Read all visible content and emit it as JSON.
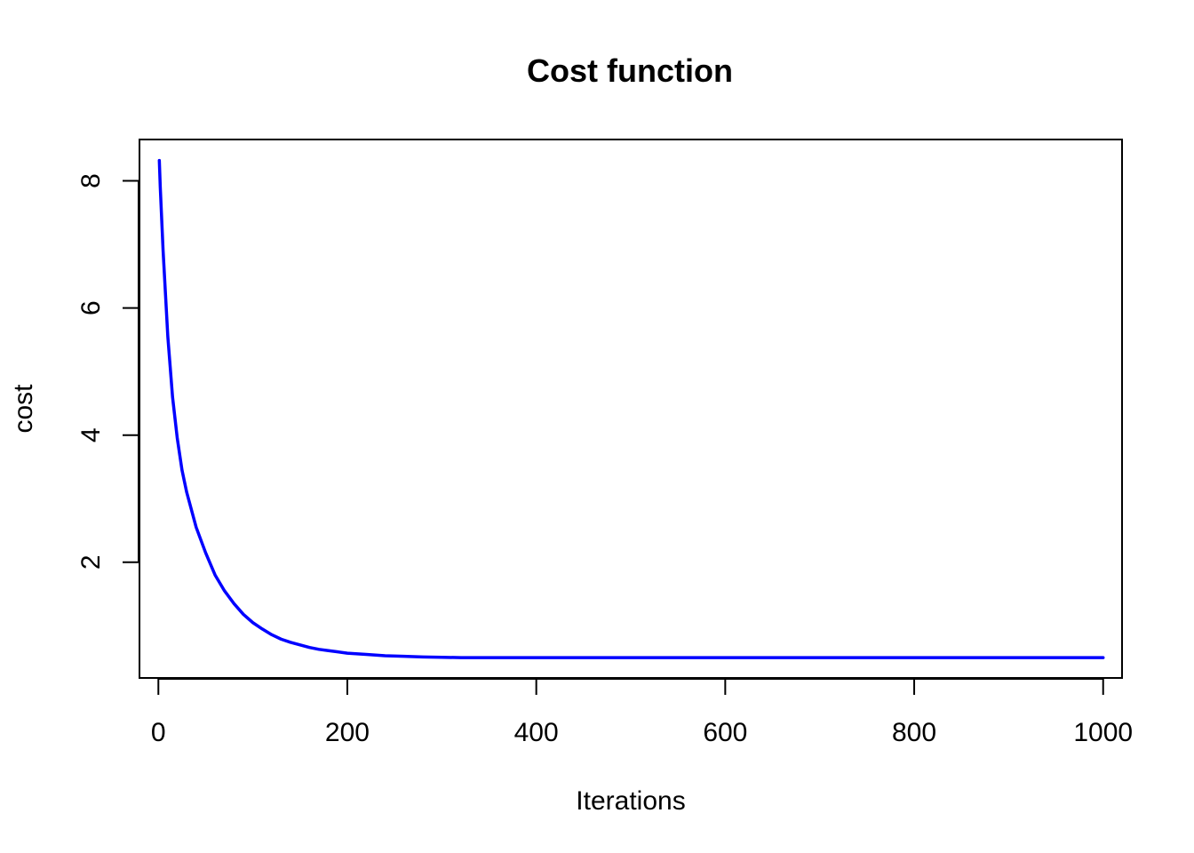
{
  "chart_data": {
    "type": "line",
    "title": "Cost function",
    "xlabel": "Iterations",
    "ylabel": "cost",
    "xlim": [
      -20,
      1020
    ],
    "ylim": [
      0.18,
      8.65
    ],
    "x_ticks": [
      0,
      200,
      400,
      600,
      800,
      1000
    ],
    "y_ticks": [
      2,
      4,
      6,
      8
    ],
    "grid": false,
    "line_color": "#0000ff",
    "series": [
      {
        "x": [
          1,
          2,
          5,
          10,
          15,
          20,
          25,
          30,
          40,
          50,
          60,
          70,
          80,
          90,
          100,
          110,
          120,
          130,
          140,
          150,
          160,
          170,
          180,
          190,
          200,
          220,
          240,
          260,
          280,
          300,
          320,
          350,
          400,
          500,
          600,
          700,
          800,
          900,
          1000
        ],
        "y": [
          8.32,
          7.9,
          6.9,
          5.55,
          4.6,
          3.95,
          3.45,
          3.1,
          2.55,
          2.15,
          1.8,
          1.55,
          1.35,
          1.18,
          1.05,
          0.95,
          0.86,
          0.79,
          0.74,
          0.7,
          0.66,
          0.63,
          0.61,
          0.59,
          0.57,
          0.55,
          0.53,
          0.52,
          0.51,
          0.505,
          0.5,
          0.5,
          0.5,
          0.5,
          0.5,
          0.5,
          0.5,
          0.5,
          0.5
        ]
      }
    ]
  }
}
